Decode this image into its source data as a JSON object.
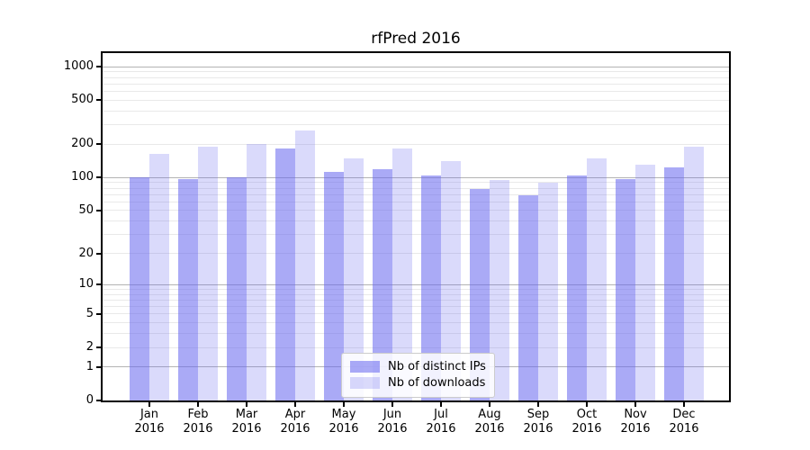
{
  "chart_data": {
    "type": "bar",
    "title": "rfPred 2016",
    "x": {
      "categories": [
        "Jan",
        "Feb",
        "Mar",
        "Apr",
        "May",
        "Jun",
        "Jul",
        "Aug",
        "Sep",
        "Oct",
        "Nov",
        "Dec"
      ],
      "year": "2016"
    },
    "y": {
      "scale": "log1p",
      "ticks": [
        0,
        1,
        2,
        5,
        10,
        20,
        50,
        100,
        200,
        500,
        1000
      ],
      "major_gridlines": [
        1,
        10,
        100,
        1000
      ],
      "lim": [
        0,
        1330
      ],
      "grid": true
    },
    "series": [
      {
        "name": "Nb of distinct IPs",
        "fill": "rgba(100,100,238,0.55)",
        "values": [
          100,
          96,
          101,
          184,
          113,
          120,
          105,
          79,
          69,
          104,
          97,
          123
        ]
      },
      {
        "name": "Nb of downloads",
        "fill": "rgba(100,100,238,0.24)",
        "values": [
          165,
          190,
          202,
          267,
          148,
          184,
          141,
          95,
          90,
          148,
          131,
          190
        ]
      }
    ],
    "legend": {
      "position": "lower-center"
    }
  },
  "style": {
    "major_grid_color": "#b3b3b3",
    "minor_grid_color": "#e9e9e9",
    "spine_color": "#000000",
    "text_color": "#000000",
    "background": "#ffffff"
  }
}
